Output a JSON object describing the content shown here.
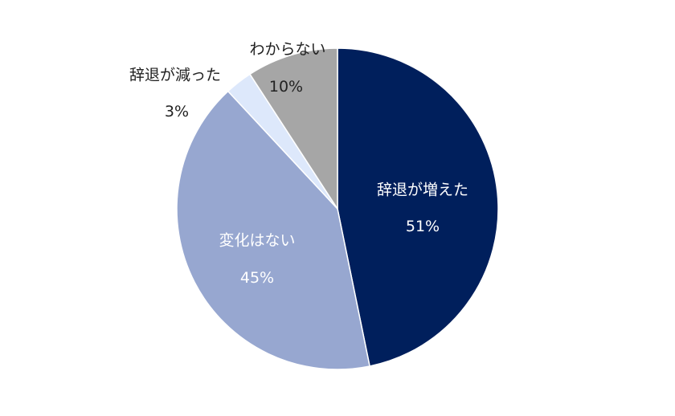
{
  "chart_data": {
    "type": "pie",
    "title": "",
    "start_angle": "12 o'clock",
    "direction": "clockwise",
    "legend": "none (data labels on slices)",
    "slices": [
      {
        "label": "辞退が増えた",
        "value": 51,
        "value_label": "51%",
        "color": "#001f5c"
      },
      {
        "label": "変化はない",
        "value": 45,
        "value_label": "45%",
        "color": "#97a7d0"
      },
      {
        "label": "辞退が減った",
        "value": 3,
        "value_label": "3%",
        "color": "#dde8fb"
      },
      {
        "label": "わからない",
        "value": 10,
        "value_label": "10%",
        "color": "#a6a6a6"
      }
    ]
  },
  "labels": {
    "increased": {
      "name": "辞退が増えた",
      "pct": "51%"
    },
    "no_change": {
      "name": "変化はない",
      "pct": "45%"
    },
    "decreased": {
      "name": "辞退が減った",
      "pct": "3%"
    },
    "unknown": {
      "name": "わからない",
      "pct": "10%"
    }
  }
}
